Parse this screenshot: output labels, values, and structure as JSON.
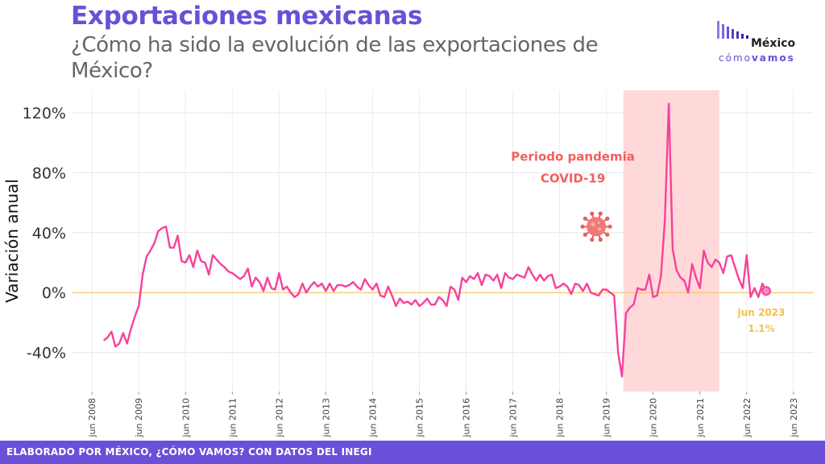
{
  "header": {
    "title": "Exportaciones mexicanas",
    "subtitle": "¿Cómo ha sido la evolución de las exportaciones de México?"
  },
  "logo": {
    "word": "México",
    "sub_light": "cómo",
    "sub_bold": "vamos"
  },
  "footer": {
    "text": "ELABORADO POR MÉXICO, ¿CÓMO VAMOS? CON DATOS DEL INEGI"
  },
  "colors": {
    "line": "#f7419b",
    "zero": "#f5c04a",
    "shade": "#ffd9d9",
    "annotation": "#f0605d",
    "last_label": "#f5c04a",
    "accent": "#6a4fd8"
  },
  "chart_data": {
    "type": "line",
    "ylabel": "Variación anual",
    "y_ticks": [
      "-40%",
      "0%",
      "40%",
      "80%",
      "120%"
    ],
    "y_tick_values": [
      -40,
      0,
      40,
      80,
      120
    ],
    "ylim": [
      -66,
      135
    ],
    "x_ticks": [
      "jun 2008",
      "jun 2009",
      "jun 2010",
      "jun 2011",
      "jun 2012",
      "jun 2013",
      "jun 2014",
      "jun 2015",
      "jun 2016",
      "jun 2017",
      "jun 2018",
      "jun 2019",
      "jun 2020",
      "jun 2021",
      "jun 2022",
      "jun 2023"
    ],
    "x_tick_years": [
      2008,
      2009,
      2010,
      2011,
      2012,
      2013,
      2014,
      2015,
      2016,
      2017,
      2018,
      2019,
      2020,
      2021,
      2022,
      2023
    ],
    "xlim_year": [
      2008.0,
      2023.85
    ],
    "shade_range_year": [
      2019.78,
      2021.83
    ],
    "shade_label": [
      "Periodo pandemia",
      "COVID-19"
    ],
    "shade_label_position_year": 2018.7,
    "shade_label_value": 88,
    "last_point_label": [
      "jun 2023",
      "1.1%"
    ],
    "grid": true,
    "series": [
      {
        "x_start": "2008-09",
        "values": [
          -32,
          -30,
          -26,
          -36,
          -34,
          -27,
          -34,
          -24,
          -16,
          -9,
          12,
          24,
          28,
          33,
          41,
          43,
          44,
          30,
          30,
          38,
          21,
          20,
          25,
          17,
          28,
          21,
          20,
          12,
          25,
          22,
          19,
          17,
          14,
          13,
          11,
          9,
          11,
          16,
          4,
          10,
          7,
          1,
          10,
          3,
          2,
          13,
          2,
          4,
          0,
          -3,
          -1,
          6,
          0,
          4,
          7,
          4,
          6,
          1,
          6,
          1,
          5,
          5,
          4,
          5,
          7,
          4,
          2,
          9,
          5,
          2,
          6,
          -2,
          -3,
          4,
          -2,
          -9,
          -4,
          -7,
          -6,
          -8,
          -5,
          -9,
          -7,
          -4,
          -8,
          -8,
          -3,
          -5,
          -9,
          4,
          2,
          -5,
          10,
          7,
          11,
          9,
          13,
          5,
          12,
          11,
          8,
          12,
          3,
          13,
          10,
          9,
          12,
          11,
          10,
          17,
          12,
          8,
          12,
          8,
          11,
          12,
          3,
          4,
          6,
          4,
          -1,
          6,
          5,
          1,
          6,
          0,
          -1,
          -2,
          2,
          2,
          0,
          -2,
          -40,
          -56,
          -14,
          -10,
          -8,
          3,
          2,
          2,
          12,
          -3,
          -2,
          11,
          48,
          126,
          29,
          15,
          10,
          8,
          0,
          19,
          10,
          3,
          28,
          20,
          17,
          22,
          20,
          13,
          24,
          25,
          17,
          9,
          3,
          25,
          -3,
          3,
          -3,
          6,
          1.1
        ]
      }
    ]
  }
}
